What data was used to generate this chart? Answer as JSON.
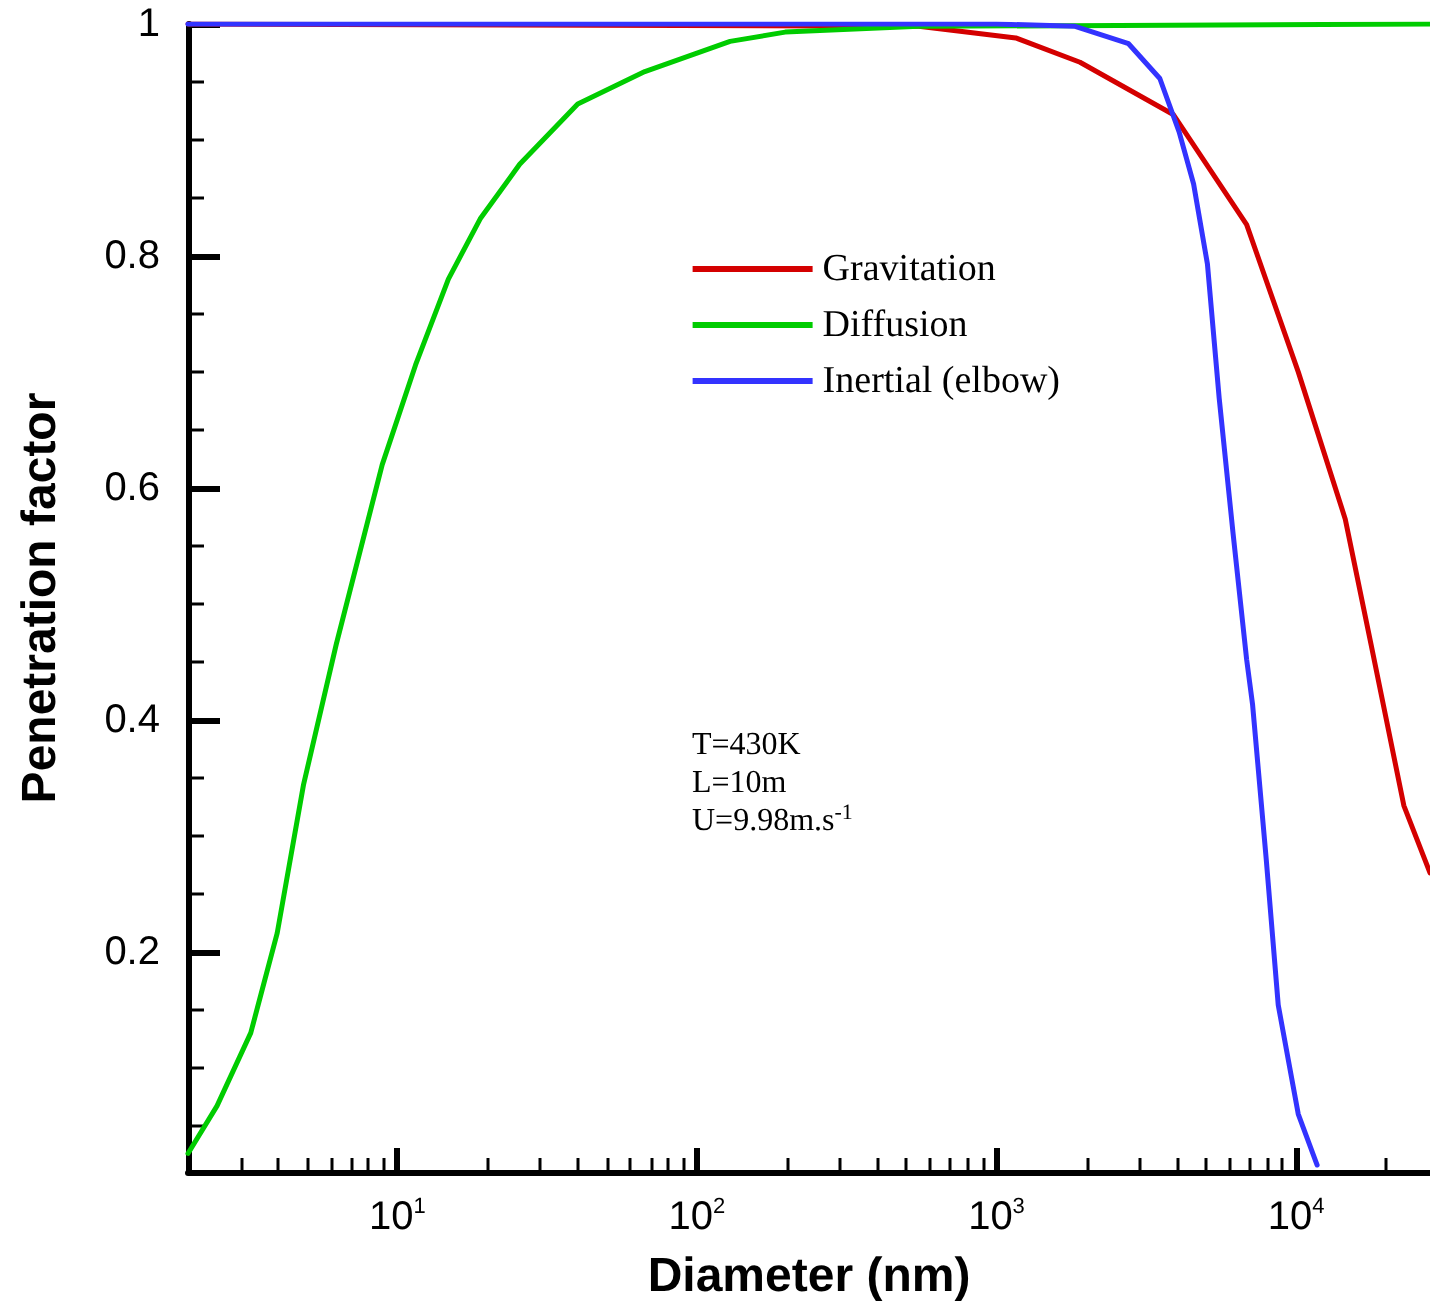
{
  "chart_data": {
    "type": "line",
    "xlabel": "Diameter (nm)",
    "ylabel": "Penetration factor",
    "log": "x",
    "xlim": [
      2,
      28000
    ],
    "ylim": [
      0.01,
      1
    ],
    "xticks": [
      {
        "value": 10,
        "label": "10$^{1}$"
      },
      {
        "value": 100,
        "label": "10$^{2}$"
      },
      {
        "value": 1000,
        "label": "10$^{3}$"
      },
      {
        "value": 10000,
        "label": "10$^{4}$"
      }
    ],
    "yticks": [
      0.2,
      0.4,
      0.6,
      0.8,
      1
    ],
    "grid": false,
    "legend": "top right",
    "marker": "none",
    "line_style": "solid",
    "annotations": [
      "T=430K",
      "L=10m",
      "U=9.98m.s$^{-1}$"
    ],
    "series": [
      {
        "name": "Gravitation",
        "color": "#d40000",
        "x": [
          2,
          550,
          1160,
          1900,
          3890,
          6840,
          10170,
          14600,
          17800,
          22900,
          28000
        ],
        "values": [
          1,
          0.998,
          0.988,
          0.967,
          0.922,
          0.827,
          0.7,
          0.573,
          0.465,
          0.326,
          0.268
        ]
      },
      {
        "name": "Diffusion",
        "color": "#00cc00",
        "x": [
          2,
          2.5,
          3.24,
          3.97,
          4.86,
          6.25,
          8.9,
          11.5,
          14.8,
          18.9,
          25.6,
          40,
          67,
          129,
          197,
          550,
          28000
        ],
        "values": [
          0.026,
          0.067,
          0.13,
          0.216,
          0.344,
          0.465,
          0.62,
          0.706,
          0.78,
          0.832,
          0.879,
          0.931,
          0.959,
          0.985,
          0.993,
          0.998,
          1
        ]
      },
      {
        "name": "Inertial (elbow)",
        "color": "#3333ff",
        "x": [
          2,
          1000,
          1830,
          2760,
          3510,
          4070,
          4550,
          5060,
          5540,
          6160,
          6840,
          7160,
          7950,
          8720,
          10170,
          11760
        ],
        "values": [
          1,
          1,
          0.998,
          0.983,
          0.953,
          0.907,
          0.862,
          0.793,
          0.677,
          0.561,
          0.452,
          0.413,
          0.28,
          0.154,
          0.06,
          0.016
        ]
      }
    ]
  }
}
